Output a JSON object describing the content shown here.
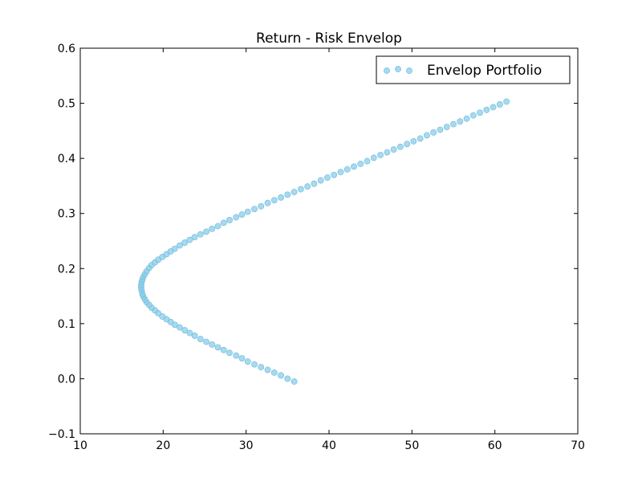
{
  "chart_data": {
    "type": "scatter",
    "title": "Return - Risk Envelop",
    "xlabel": "",
    "ylabel": "",
    "xlim": [
      10,
      70
    ],
    "ylim": [
      -0.1,
      0.6
    ],
    "xticks": [
      10,
      20,
      30,
      40,
      50,
      60,
      70
    ],
    "yticks": [
      -0.1,
      0.0,
      0.1,
      0.2,
      0.3,
      0.4,
      0.5,
      0.6
    ],
    "xtick_labels": [
      "10",
      "20",
      "30",
      "40",
      "50",
      "60",
      "70"
    ],
    "ytick_labels": [
      "−0.1",
      "0.0",
      "0.1",
      "0.2",
      "0.3",
      "0.4",
      "0.5",
      "0.6"
    ],
    "grid": false,
    "legend": {
      "position": "top-right",
      "entries": [
        "Envelop Portfolio"
      ]
    },
    "series": [
      {
        "name": "Envelop Portfolio",
        "color": "#87ceeb",
        "points": [
          [
            35.8,
            -0.005
          ],
          [
            35.0,
            0.0
          ],
          [
            34.2,
            0.006
          ],
          [
            33.4,
            0.011
          ],
          [
            32.6,
            0.016
          ],
          [
            31.8,
            0.021
          ],
          [
            31.0,
            0.026
          ],
          [
            30.2,
            0.031
          ],
          [
            29.5,
            0.037
          ],
          [
            28.8,
            0.042
          ],
          [
            28.0,
            0.047
          ],
          [
            27.3,
            0.052
          ],
          [
            26.6,
            0.057
          ],
          [
            25.9,
            0.062
          ],
          [
            25.2,
            0.067
          ],
          [
            24.5,
            0.072
          ],
          [
            23.8,
            0.078
          ],
          [
            23.2,
            0.083
          ],
          [
            22.6,
            0.088
          ],
          [
            22.0,
            0.093
          ],
          [
            21.4,
            0.098
          ],
          [
            20.9,
            0.103
          ],
          [
            20.4,
            0.108
          ],
          [
            19.9,
            0.113
          ],
          [
            19.4,
            0.119
          ],
          [
            19.0,
            0.124
          ],
          [
            18.6,
            0.129
          ],
          [
            18.3,
            0.134
          ],
          [
            18.0,
            0.139
          ],
          [
            17.8,
            0.144
          ],
          [
            17.6,
            0.149
          ],
          [
            17.5,
            0.154
          ],
          [
            17.4,
            0.16
          ],
          [
            17.35,
            0.165
          ],
          [
            17.35,
            0.17
          ],
          [
            17.4,
            0.175
          ],
          [
            17.5,
            0.18
          ],
          [
            17.6,
            0.185
          ],
          [
            17.8,
            0.19
          ],
          [
            18.0,
            0.195
          ],
          [
            18.3,
            0.201
          ],
          [
            18.6,
            0.206
          ],
          [
            19.0,
            0.211
          ],
          [
            19.4,
            0.216
          ],
          [
            19.9,
            0.221
          ],
          [
            20.4,
            0.226
          ],
          [
            20.9,
            0.231
          ],
          [
            21.4,
            0.236
          ],
          [
            22.0,
            0.242
          ],
          [
            22.6,
            0.247
          ],
          [
            23.2,
            0.252
          ],
          [
            23.8,
            0.257
          ],
          [
            24.5,
            0.262
          ],
          [
            25.2,
            0.267
          ],
          [
            25.9,
            0.272
          ],
          [
            26.6,
            0.277
          ],
          [
            27.3,
            0.283
          ],
          [
            28.0,
            0.288
          ],
          [
            28.8,
            0.293
          ],
          [
            29.5,
            0.298
          ],
          [
            30.2,
            0.303
          ],
          [
            31.0,
            0.308
          ],
          [
            31.8,
            0.313
          ],
          [
            32.6,
            0.319
          ],
          [
            33.4,
            0.324
          ],
          [
            34.2,
            0.329
          ],
          [
            35.0,
            0.334
          ],
          [
            35.8,
            0.339
          ],
          [
            36.6,
            0.344
          ],
          [
            37.4,
            0.349
          ],
          [
            38.2,
            0.354
          ],
          [
            39.0,
            0.36
          ],
          [
            39.8,
            0.365
          ],
          [
            40.6,
            0.37
          ],
          [
            41.4,
            0.375
          ],
          [
            42.2,
            0.38
          ],
          [
            43.0,
            0.385
          ],
          [
            43.8,
            0.39
          ],
          [
            44.6,
            0.395
          ],
          [
            45.4,
            0.401
          ],
          [
            46.2,
            0.406
          ],
          [
            47.0,
            0.411
          ],
          [
            47.8,
            0.416
          ],
          [
            48.6,
            0.421
          ],
          [
            49.4,
            0.426
          ],
          [
            50.2,
            0.431
          ],
          [
            51.0,
            0.436
          ],
          [
            51.8,
            0.442
          ],
          [
            52.6,
            0.447
          ],
          [
            53.4,
            0.452
          ],
          [
            54.2,
            0.457
          ],
          [
            55.0,
            0.462
          ],
          [
            55.8,
            0.467
          ],
          [
            56.6,
            0.472
          ],
          [
            57.4,
            0.478
          ],
          [
            58.2,
            0.483
          ],
          [
            59.0,
            0.488
          ],
          [
            59.8,
            0.493
          ],
          [
            60.6,
            0.498
          ],
          [
            61.4,
            0.503
          ]
        ]
      }
    ]
  }
}
